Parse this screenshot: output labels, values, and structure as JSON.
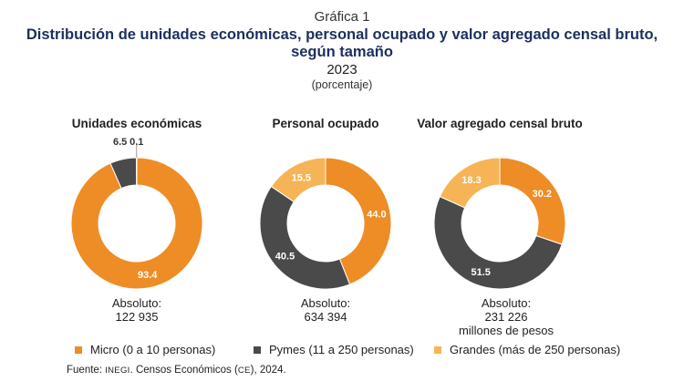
{
  "header": {
    "label": "Gráfica 1",
    "title": "Distribución de unidades económicas, personal ocupado y valor agregado censal bruto, según tamaño",
    "year": "2023",
    "unit": "(porcentaje)"
  },
  "colors": {
    "micro": "#EE8C26",
    "pymes": "#4A4A4A",
    "grandes": "#F6B456"
  },
  "legend": [
    {
      "key": "micro",
      "label": "Micro (0 a 10 personas)"
    },
    {
      "key": "pymes",
      "label": "Pymes (11 a 250 personas)"
    },
    {
      "key": "grandes",
      "label": "Grandes (más de 250 personas)"
    }
  ],
  "source": {
    "prefix": "Fuente: ",
    "org": "INEGI",
    "mid": ". Censos Económicos (",
    "abbr": "CE",
    "suffix": "), 2024."
  },
  "chart_data": [
    {
      "type": "pie",
      "title": "Unidades económicas",
      "categories": [
        "Micro (0 a 10 personas)",
        "Pymes (11 a 250 personas)",
        "Grandes (más de 250 personas)"
      ],
      "values": [
        93.4,
        6.5,
        0.1
      ],
      "labels": [
        "93.4",
        "6.5",
        "0.1"
      ],
      "absolute_label": "Absoluto:",
      "absolute_value": "122 935",
      "absolute_unit": ""
    },
    {
      "type": "pie",
      "title": "Personal ocupado",
      "categories": [
        "Micro (0 a 10 personas)",
        "Pymes (11 a 250 personas)",
        "Grandes (más de 250 personas)"
      ],
      "values": [
        44.0,
        40.5,
        15.5
      ],
      "labels": [
        "44.0",
        "40.5",
        "15.5"
      ],
      "absolute_label": "Absoluto:",
      "absolute_value": "634 394",
      "absolute_unit": ""
    },
    {
      "type": "pie",
      "title": "Valor agregado censal bruto",
      "categories": [
        "Micro (0 a 10 personas)",
        "Pymes (11 a 250 personas)",
        "Grandes (más de 250 personas)"
      ],
      "values": [
        30.2,
        51.5,
        18.3
      ],
      "labels": [
        "30.2",
        "51.5",
        "18.3"
      ],
      "absolute_label": "Absoluto:",
      "absolute_value": "231 226",
      "absolute_unit": "millones de pesos"
    }
  ]
}
